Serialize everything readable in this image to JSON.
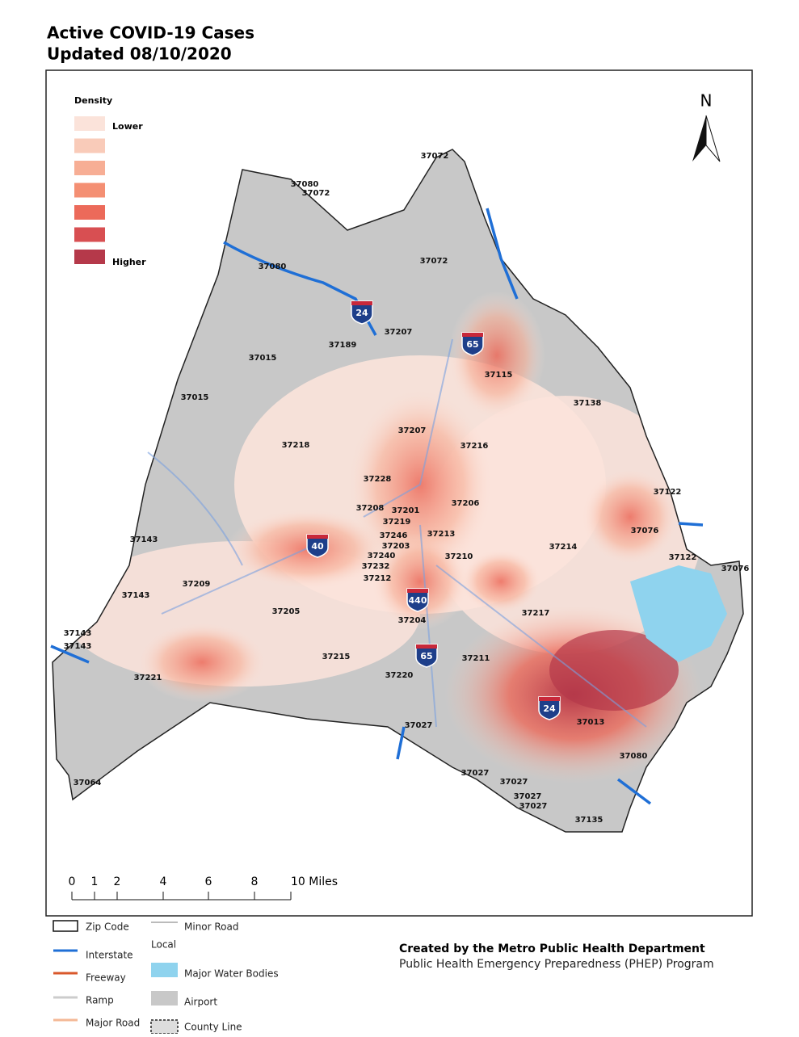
{
  "title": [
    "Active COVID-19 Cases",
    "Updated 08/10/2020"
  ],
  "density_legend": {
    "title": "Density",
    "low": "Lower",
    "high": "Higher",
    "colors": [
      "#fbe3da",
      "#f9cbb9",
      "#f7ae95",
      "#f48f73",
      "#ec6a5a",
      "#d84f52",
      "#b5394a"
    ]
  },
  "north": "N",
  "zip_labels": [
    "37072",
    "37080",
    "37072",
    "37080",
    "37072",
    "37189",
    "37207",
    "37015",
    "37015",
    "37115",
    "37138",
    "37207",
    "37218",
    "37216",
    "37228",
    "37206",
    "37208",
    "37201",
    "37219",
    "37246",
    "37213",
    "37203",
    "37210",
    "37240",
    "37232",
    "37212",
    "37214",
    "37076",
    "37122",
    "37076",
    "37143",
    "37209",
    "37143",
    "37205",
    "37204",
    "37217",
    "37215",
    "37220",
    "37211",
    "37143",
    "37143",
    "37221",
    "37027",
    "37013",
    "37080",
    "37064",
    "37027",
    "37027",
    "37027",
    "37027",
    "37135",
    "37122"
  ],
  "shields": [
    "24",
    "65",
    "40",
    "440",
    "65",
    "24"
  ],
  "scale_bar": [
    "0",
    "1",
    "2",
    "4",
    "6",
    "8",
    "10 Miles"
  ],
  "map_legend": [
    "Zip Code",
    "Interstate",
    "Freeway",
    "Ramp",
    "Major Road",
    "Minor Road",
    "Local",
    "Major Water Bodies",
    "Airport",
    "County Line"
  ],
  "credit": [
    "Created by the Metro Public Health Department",
    "Public Health Emergency Preparedness (PHEP) Program"
  ]
}
